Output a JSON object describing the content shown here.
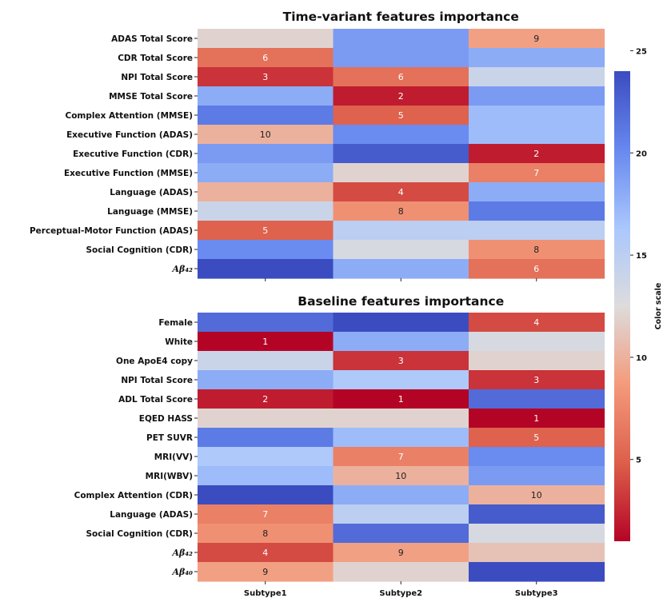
{
  "chart_data": [
    {
      "type": "heatmap",
      "title": "Time-variant features importance",
      "columns": [
        "Subtype1",
        "Subtype2",
        "Subtype3"
      ],
      "rows": [
        {
          "label": "ADAS Total Score",
          "values": [
            12,
            19,
            9
          ]
        },
        {
          "label": "CDR Total Score",
          "values": [
            6,
            19,
            18
          ]
        },
        {
          "label": "NPI Total Score",
          "values": [
            3,
            6,
            14
          ]
        },
        {
          "label": "MMSE Total Score",
          "values": [
            18,
            2,
            19
          ]
        },
        {
          "label": "Complex Attention (MMSE)",
          "values": [
            21,
            5,
            17
          ]
        },
        {
          "label": "Executive Function (ADAS)",
          "values": [
            10,
            20,
            17
          ]
        },
        {
          "label": "Executive Function (CDR)",
          "values": [
            19,
            23,
            2
          ]
        },
        {
          "label": "Executive Function (MMSE)",
          "values": [
            18,
            12,
            7
          ]
        },
        {
          "label": "Language (ADAS)",
          "values": [
            10,
            4,
            18
          ]
        },
        {
          "label": "Language (MMSE)",
          "values": [
            14,
            8,
            21
          ]
        },
        {
          "label": "Perceptual-Motor Function (ADAS)",
          "values": [
            5,
            15,
            15
          ]
        },
        {
          "label": "Social Cognition (CDR)",
          "values": [
            20,
            13,
            8
          ]
        },
        {
          "label": "Aβ₄₂",
          "values": [
            24,
            18,
            6
          ]
        }
      ],
      "annotations": [
        {
          "row": 0,
          "col": 2,
          "text": "9"
        },
        {
          "row": 1,
          "col": 0,
          "text": "6"
        },
        {
          "row": 2,
          "col": 0,
          "text": "3"
        },
        {
          "row": 2,
          "col": 1,
          "text": "6"
        },
        {
          "row": 3,
          "col": 1,
          "text": "2"
        },
        {
          "row": 4,
          "col": 1,
          "text": "5"
        },
        {
          "row": 5,
          "col": 0,
          "text": "10"
        },
        {
          "row": 6,
          "col": 2,
          "text": "2"
        },
        {
          "row": 7,
          "col": 2,
          "text": "7"
        },
        {
          "row": 8,
          "col": 1,
          "text": "4"
        },
        {
          "row": 9,
          "col": 1,
          "text": "8"
        },
        {
          "row": 10,
          "col": 0,
          "text": "5"
        },
        {
          "row": 11,
          "col": 2,
          "text": "8"
        },
        {
          "row": 12,
          "col": 2,
          "text": "6"
        }
      ]
    },
    {
      "type": "heatmap",
      "title": "Baseline features importance",
      "columns": [
        "Subtype1",
        "Subtype2",
        "Subtype3"
      ],
      "rows": [
        {
          "label": "Female",
          "values": [
            22,
            24,
            4
          ]
        },
        {
          "label": "White",
          "values": [
            1,
            18,
            13
          ]
        },
        {
          "label": "One ApoE4 copy",
          "values": [
            14,
            3,
            12
          ]
        },
        {
          "label": "NPI Total Score",
          "values": [
            18,
            16,
            3
          ]
        },
        {
          "label": "ADL Total Score",
          "values": [
            2,
            1,
            22
          ]
        },
        {
          "label": "EQED HASS",
          "values": [
            12,
            12,
            1
          ]
        },
        {
          "label": "PET SUVR",
          "values": [
            21,
            17,
            5
          ]
        },
        {
          "label": "MRI(VV)",
          "values": [
            16,
            7,
            20
          ]
        },
        {
          "label": "MRI(WBV)",
          "values": [
            17,
            10,
            19
          ]
        },
        {
          "label": "Complex Attention (CDR)",
          "values": [
            24,
            18,
            10
          ]
        },
        {
          "label": "Language (ADAS)",
          "values": [
            7,
            15,
            23
          ]
        },
        {
          "label": "Social Cognition (CDR)",
          "values": [
            8,
            22,
            13
          ]
        },
        {
          "label": "Aβ₄₂",
          "values": [
            4,
            9,
            11
          ]
        },
        {
          "label": "Aβ₄₀",
          "values": [
            9,
            12,
            24
          ]
        }
      ],
      "annotations": [
        {
          "row": 0,
          "col": 2,
          "text": "4"
        },
        {
          "row": 1,
          "col": 0,
          "text": "1"
        },
        {
          "row": 2,
          "col": 1,
          "text": "3"
        },
        {
          "row": 3,
          "col": 2,
          "text": "3"
        },
        {
          "row": 4,
          "col": 0,
          "text": "2"
        },
        {
          "row": 4,
          "col": 1,
          "text": "1"
        },
        {
          "row": 5,
          "col": 2,
          "text": "1"
        },
        {
          "row": 6,
          "col": 2,
          "text": "5"
        },
        {
          "row": 7,
          "col": 1,
          "text": "7"
        },
        {
          "row": 8,
          "col": 1,
          "text": "10"
        },
        {
          "row": 9,
          "col": 2,
          "text": "10"
        },
        {
          "row": 10,
          "col": 0,
          "text": "7"
        },
        {
          "row": 11,
          "col": 0,
          "text": "8"
        },
        {
          "row": 12,
          "col": 0,
          "text": "4"
        },
        {
          "row": 12,
          "col": 1,
          "text": "9"
        },
        {
          "row": 13,
          "col": 0,
          "text": "9"
        }
      ]
    }
  ],
  "colorbar": {
    "label": "Color scale",
    "range": [
      1,
      24
    ],
    "ticks": [
      5,
      10,
      15,
      20,
      25
    ],
    "colormap": "coolwarm_r",
    "colors": [
      "#b40426",
      "#dd5f4b",
      "#f49a7b",
      "#dddcdc",
      "#aac7fd",
      "#6788ee",
      "#3b4cc0"
    ]
  }
}
